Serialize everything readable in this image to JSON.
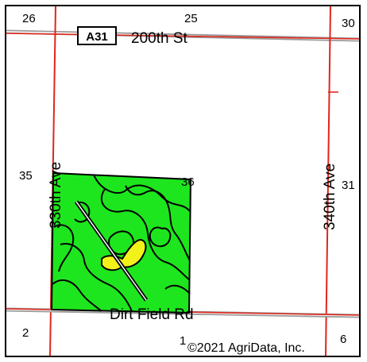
{
  "map": {
    "section_numbers": {
      "s26": "26",
      "s25": "25",
      "s30": "30",
      "s35": "35",
      "s36": "36",
      "s31": "31",
      "s2": "2",
      "s1": "1",
      "s6": "6"
    },
    "roads": {
      "top_street": "200th St",
      "route_shield": "A31",
      "left_avenue": "330th Ave",
      "right_avenue": "340th Ave",
      "bottom_road": "Dirt Field Rd"
    },
    "copyright": "©2021 AgriData, Inc.",
    "colors": {
      "road_red": "#e0261c",
      "road_gray": "#9a9a9a",
      "field_green": "#1ee61e",
      "soil_yellow": "#f2f21a",
      "line_black": "#000000"
    }
  }
}
